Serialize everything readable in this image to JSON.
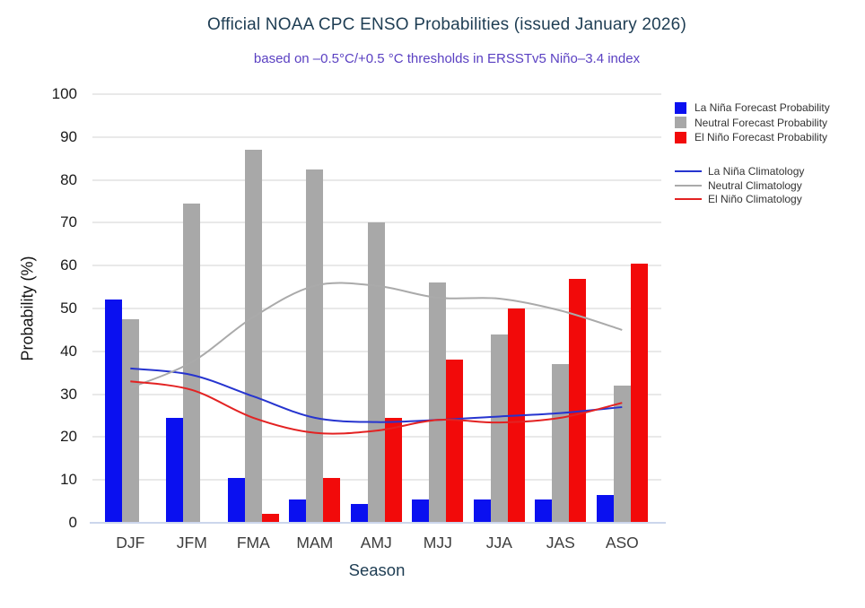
{
  "header": {
    "title": "Official NOAA CPC ENSO Probabilities (issued January 2026)",
    "subtitle": "based on –0.5°C/+0.5 °C thresholds in ERSSTv5 Niño–3.4 index"
  },
  "colors": {
    "title_text": "#1e3d53",
    "subtitle_text": "#5a40c2",
    "la_nina_bar": "#0a10f0",
    "neutral_bar": "#a8a8a8",
    "el_nino_bar": "#f20a0a",
    "la_nina_line": "#2634cf",
    "neutral_line": "#aaaaaa",
    "el_nino_line": "#e32222",
    "gridline": "#e9e9e9",
    "x_axis_line": "#ccd6ec"
  },
  "chart_data": {
    "type": "bar",
    "title": "Official NOAA CPC ENSO Probabilities (issued January 2026)",
    "subtitle": "based on –0.5°C/+0.5 °C thresholds in ERSSTv5 Niño–3.4 index",
    "xlabel": "Season",
    "ylabel": "Probability (%)",
    "ylim": [
      0,
      100
    ],
    "ytick_step": 10,
    "grid": true,
    "legend_position": "right",
    "categories": [
      "DJF",
      "JFM",
      "FMA",
      "MAM",
      "AMJ",
      "MJJ",
      "JJA",
      "JAS",
      "ASO"
    ],
    "series": [
      {
        "name": "La Niña Forecast Probability",
        "kind": "bar",
        "color": "#0a10f0",
        "values": [
          52,
          24.5,
          10.5,
          5.5,
          4.5,
          5.5,
          5.5,
          5.5,
          6.5
        ]
      },
      {
        "name": "Neutral Forecast Probability",
        "kind": "bar",
        "color": "#a8a8a8",
        "values": [
          47.5,
          74.5,
          87,
          82.5,
          70,
          56,
          44,
          37,
          32
        ]
      },
      {
        "name": "El Niño Forecast Probability",
        "kind": "bar",
        "color": "#f20a0a",
        "values": [
          0,
          0,
          2,
          10.5,
          24.5,
          38,
          50,
          57,
          60.5
        ]
      },
      {
        "name": "La Niña Climatology",
        "kind": "line",
        "color": "#2634cf",
        "values": [
          36,
          34.5,
          29.5,
          24.5,
          23.5,
          24,
          24.8,
          25.6,
          27
        ]
      },
      {
        "name": "Neutral Climatology",
        "kind": "line",
        "color": "#aaaaaa",
        "values": [
          31.5,
          37.5,
          48,
          55.3,
          55.3,
          52.5,
          52.3,
          49.5,
          45
        ]
      },
      {
        "name": "El Niño Climatology",
        "kind": "line",
        "color": "#e32222",
        "values": [
          33,
          31,
          24.5,
          21,
          21.5,
          24,
          23.4,
          24.5,
          28
        ]
      }
    ]
  }
}
